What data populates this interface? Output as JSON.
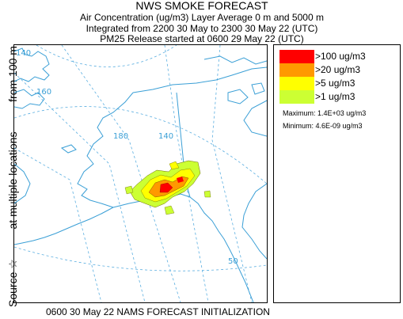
{
  "header": {
    "title": "NWS SMOKE FORECAST",
    "line1": "Air Concentration (ug/m3) Layer Average    0 m  and  5000 m",
    "line2": "Integrated from 2200 30 May to 2300 30 May 22 (UTC)",
    "line3": "PM25 Release started at 0600 29 May 22 (UTC)"
  },
  "side_label": {
    "source": "Source ☆",
    "locations": "at multiple locations",
    "height": "from  100 m"
  },
  "map": {
    "graticule_labels": [
      "140",
      "160",
      "180",
      "140",
      "50"
    ],
    "coastline_color": "#3a9fd6",
    "graticule_color": "#3a9fd6"
  },
  "legend": {
    "items": [
      {
        "label": ">100 ug/m3",
        "color": "#ff0000"
      },
      {
        "label": ">20 ug/m3",
        "color": "#ff9900"
      },
      {
        "label": ">5 ug/m3",
        "color": "#ffff00"
      },
      {
        "label": ">1 ug/m3",
        "color": "#ccff33"
      }
    ],
    "maximum": "Maximum: 1.4E+03 ug/m3",
    "minimum": "Minimum: 4.6E-09 ug/m3"
  },
  "footer": {
    "text": "0600 30 May 22 NAMS FORECAST INITIALIZATION"
  }
}
